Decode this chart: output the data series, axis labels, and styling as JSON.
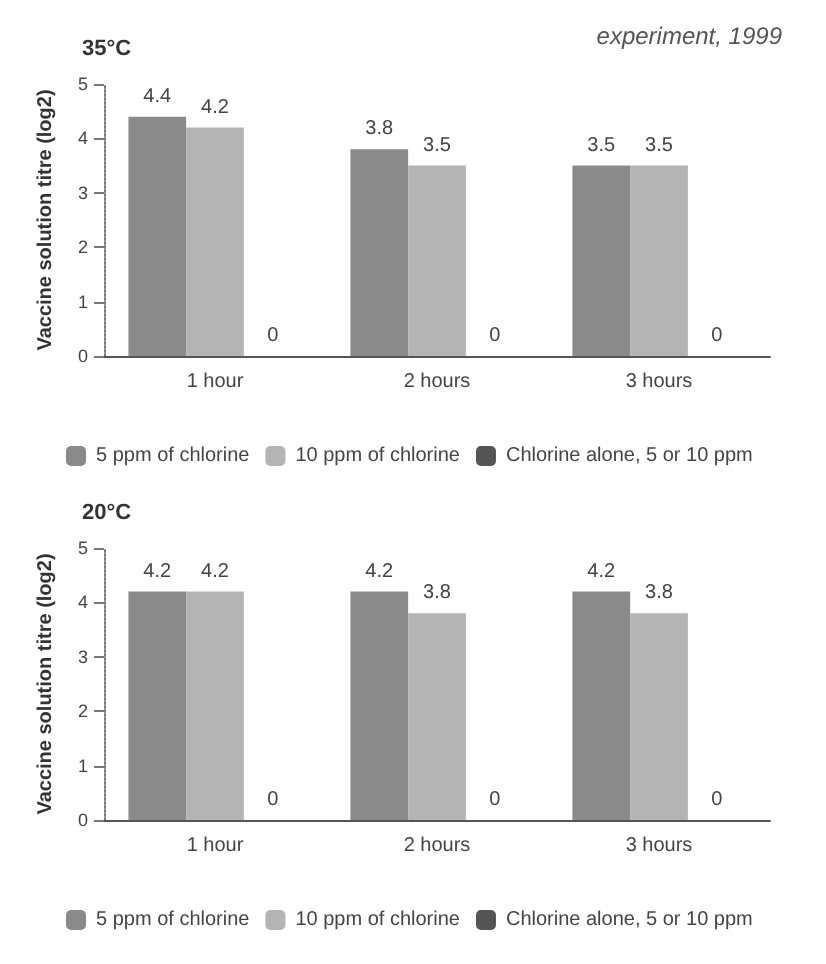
{
  "chart_data": [
    {
      "type": "bar",
      "title": "35°C",
      "ylabel": "Vaccine solution titre (log2)",
      "annotations": [
        "experiment, 1999"
      ],
      "categories": [
        "1 hour",
        "2 hours",
        "3 hours"
      ],
      "series": [
        {
          "name": "5 ppm of chlorine",
          "color": "#8a8a8a",
          "values": [
            4.4,
            3.8,
            3.5
          ]
        },
        {
          "name": "10 ppm of chlorine",
          "color": "#b4b4b4",
          "values": [
            4.2,
            3.5,
            3.5
          ]
        },
        {
          "name": "Chlorine alone, 5 or 10 ppm",
          "color": "#555555",
          "values": [
            0,
            0,
            0
          ]
        }
      ],
      "ylim": [
        0,
        5
      ],
      "yticks": [
        0,
        1,
        2,
        3,
        4,
        5
      ],
      "grid": false,
      "legend": "bottom left",
      "data_labels": true
    },
    {
      "type": "bar",
      "title": "20°C",
      "ylabel": "Vaccine solution titre (log2)",
      "categories": [
        "1 hour",
        "2 hours",
        "3 hours"
      ],
      "series": [
        {
          "name": "5 ppm of chlorine",
          "color": "#8a8a8a",
          "values": [
            4.2,
            4.2,
            4.2
          ]
        },
        {
          "name": "10 ppm of chlorine",
          "color": "#b4b4b4",
          "values": [
            4.2,
            3.8,
            3.8
          ]
        },
        {
          "name": "Chlorine alone, 5 or 10 ppm",
          "color": "#555555",
          "values": [
            0,
            0,
            0
          ]
        }
      ],
      "ylim": [
        0,
        5
      ],
      "yticks": [
        0,
        1,
        2,
        3,
        4,
        5
      ],
      "grid": false,
      "legend": "bottom left",
      "data_labels": true
    }
  ]
}
